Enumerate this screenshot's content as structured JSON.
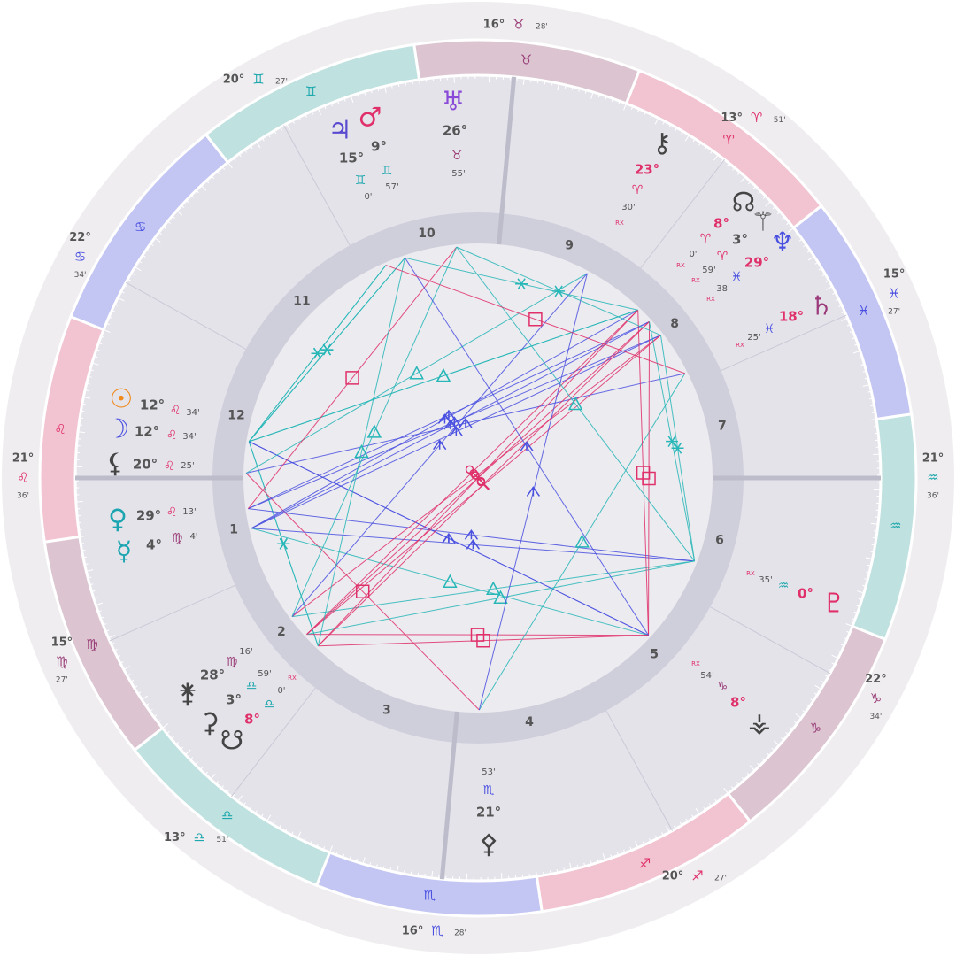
{
  "cusps": [
    {
      "degree": "21°",
      "sign": "♌",
      "minutes": "36'"
    },
    {
      "degree": "15°",
      "sign": "♍",
      "minutes": "27'"
    },
    {
      "degree": "13°",
      "sign": "♎",
      "minutes": "51'"
    },
    {
      "degree": "16°",
      "sign": "♏",
      "minutes": "28'"
    },
    {
      "degree": "20°",
      "sign": "♐",
      "minutes": "27'"
    },
    {
      "degree": "22°",
      "sign": "♑",
      "minutes": "34'"
    },
    {
      "degree": "21°",
      "sign": "♒",
      "minutes": "36'"
    },
    {
      "degree": "15°",
      "sign": "♓",
      "minutes": "27'"
    },
    {
      "degree": "13°",
      "sign": "♈",
      "minutes": "51'"
    },
    {
      "degree": "16°",
      "sign": "♉",
      "minutes": "28'"
    },
    {
      "degree": "20°",
      "sign": "♊",
      "minutes": "27'"
    },
    {
      "degree": "22°",
      "sign": "♋",
      "minutes": "34'"
    }
  ],
  "zodiac": [
    "♈",
    "♉",
    "♊",
    "♋",
    "♌",
    "♍",
    "♎",
    "♏",
    "♐",
    "♑",
    "♒",
    "♓"
  ],
  "houses": [
    "1",
    "2",
    "3",
    "4",
    "5",
    "6",
    "7",
    "8",
    "9",
    "10",
    "11",
    "12"
  ],
  "planets": [
    {
      "symbol": "☉",
      "degree": "12°",
      "sign": "♌",
      "minutes": "34'"
    },
    {
      "symbol": "☽",
      "degree": "12°",
      "sign": "♌",
      "minutes": "34'"
    },
    {
      "symbol": "⚸",
      "degree": "20°",
      "sign": "♌",
      "minutes": "25'"
    },
    {
      "symbol": "♀",
      "degree": "29°",
      "sign": "♌",
      "minutes": "13'"
    },
    {
      "symbol": "☿",
      "degree": "4°",
      "sign": "♍",
      "minutes": "4'"
    },
    {
      "symbol": "⚵",
      "degree": "28°",
      "sign": "♍",
      "minutes": "16'"
    },
    {
      "symbol": "⚳",
      "degree": "3°",
      "sign": "♎",
      "minutes": "59'"
    },
    {
      "symbol": "☋",
      "degree": "8°",
      "sign": "♎",
      "minutes": "0'",
      "rx": "RX"
    },
    {
      "symbol": "⚴",
      "degree": "21°",
      "sign": "♏",
      "minutes": "53'"
    },
    {
      "symbol": "⚶",
      "degree": "8°",
      "sign": "♑",
      "minutes": "54'",
      "rx": "RX"
    },
    {
      "symbol": "♇",
      "degree": "0°",
      "sign": "♒",
      "minutes": "35'",
      "rx": "RX"
    },
    {
      "symbol": "♄",
      "degree": "18°",
      "sign": "♓",
      "minutes": "25'",
      "rx": "RX"
    },
    {
      "symbol": "♆",
      "degree": "29°",
      "sign": "♓",
      "minutes": "38'",
      "rx": "RX"
    },
    {
      "symbol": "⚚",
      "degree": "3°",
      "sign": "♈",
      "minutes": "59'",
      "rx": "RX"
    },
    {
      "symbol": "☊",
      "degree": "8°",
      "sign": "♈",
      "minutes": "0'",
      "rx": "RX"
    },
    {
      "symbol": "⚷",
      "degree": "23°",
      "sign": "♈",
      "minutes": "30'",
      "rx": "RX"
    },
    {
      "symbol": "♅",
      "degree": "26°",
      "sign": "♉",
      "minutes": "55'"
    },
    {
      "symbol": "♂",
      "degree": "9°",
      "sign": "♊",
      "minutes": "57'"
    },
    {
      "symbol": "♃",
      "degree": "15°",
      "sign": "♊",
      "minutes": "0'"
    }
  ]
}
